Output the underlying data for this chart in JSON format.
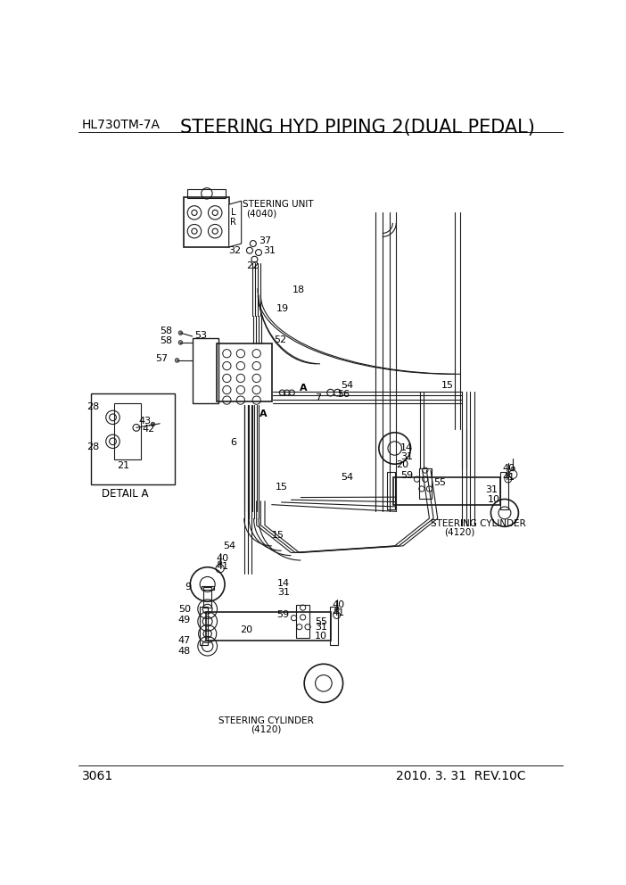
{
  "page_number": "3061",
  "model": "HL730TM-7A",
  "title": "STEERING HYD PIPING 2(DUAL PEDAL)",
  "date_rev": "2010. 3. 31  REV.10C",
  "bg_color": "#ffffff",
  "line_color": "#1a1a1a",
  "text_color": "#000000",
  "title_fontsize": 15,
  "model_fontsize": 10,
  "footer_fontsize": 10,
  "label_fontsize": 8
}
